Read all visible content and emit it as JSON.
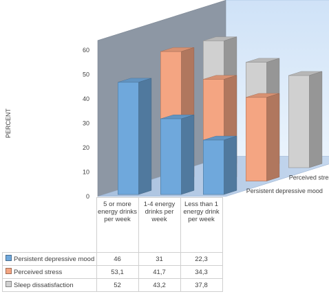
{
  "chart_data": {
    "type": "bar",
    "title": "",
    "ylabel": "PERCENT",
    "xlabel": "",
    "ylim": [
      0,
      60
    ],
    "yticks": [
      "0",
      "10",
      "20",
      "30",
      "40",
      "50",
      "60"
    ],
    "categories": [
      "5 or more energy drinks per week",
      "1-4 energy drinks per week",
      "Less than 1 energy drink per week"
    ],
    "series": [
      {
        "name": "Persistent depressive mood",
        "values": [
          46,
          31,
          22.3
        ],
        "labels": [
          "46",
          "31",
          "22,3"
        ],
        "color": "#6fa8dc"
      },
      {
        "name": "Perceived stress",
        "values": [
          53.1,
          41.7,
          34.3
        ],
        "labels": [
          "53,1",
          "41,7",
          "34,3"
        ],
        "color": "#f4a582"
      },
      {
        "name": "Sleep dissatisfaction",
        "values": [
          52,
          43.2,
          37.8
        ],
        "labels": [
          "52",
          "43,2",
          "37,8"
        ],
        "color": "#d0d0d0"
      }
    ],
    "depth_labels": [
      "Sleep dissatisfaction",
      "Perceived stress",
      "Persistent depressive mood"
    ],
    "grid": false,
    "legend": "data-table"
  }
}
